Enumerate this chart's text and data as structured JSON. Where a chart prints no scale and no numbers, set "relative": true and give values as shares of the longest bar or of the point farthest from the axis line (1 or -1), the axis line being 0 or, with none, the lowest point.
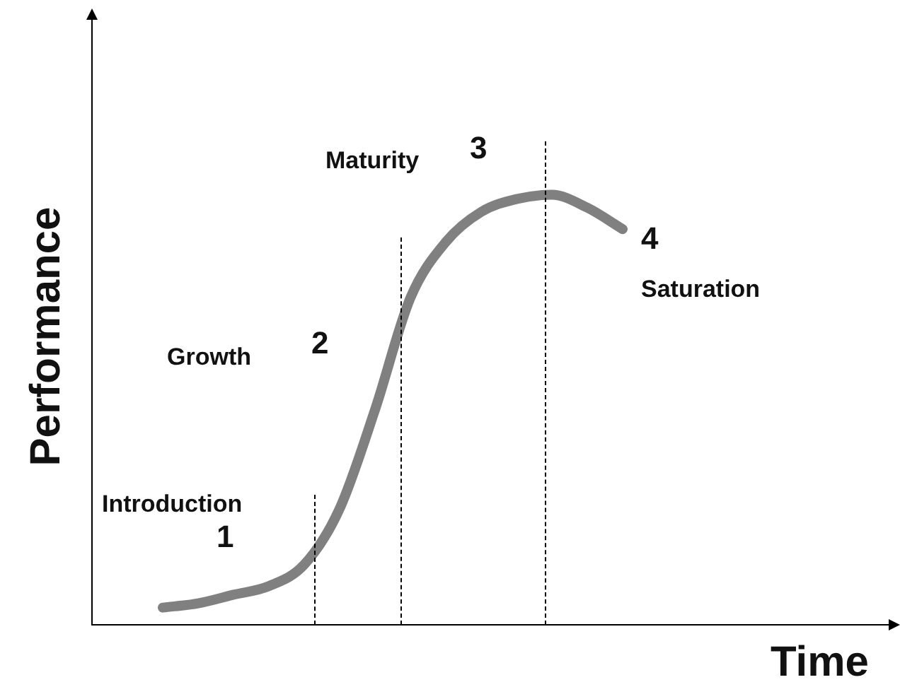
{
  "chart_data": {
    "type": "line",
    "relative": true,
    "xlabel": "Time",
    "ylabel": "Performance",
    "categories": [
      null,
      null,
      null,
      null,
      null,
      null,
      null,
      null,
      null,
      null,
      null,
      null,
      null,
      null
    ],
    "series": [
      {
        "color": "#808080",
        "values": [
          0.04,
          0.05,
          0.07,
          0.09,
          0.14,
          0.27,
          0.5,
          0.76,
          0.89,
          0.96,
          0.99,
          1.0,
          0.97,
          0.92
        ]
      }
    ],
    "annotations": [
      "Introduction",
      "1",
      "Growth",
      "2",
      "Maturity",
      "3",
      "4",
      "Saturation"
    ],
    "marker": "none",
    "line_style": "solid",
    "grid": false,
    "legend": false
  }
}
